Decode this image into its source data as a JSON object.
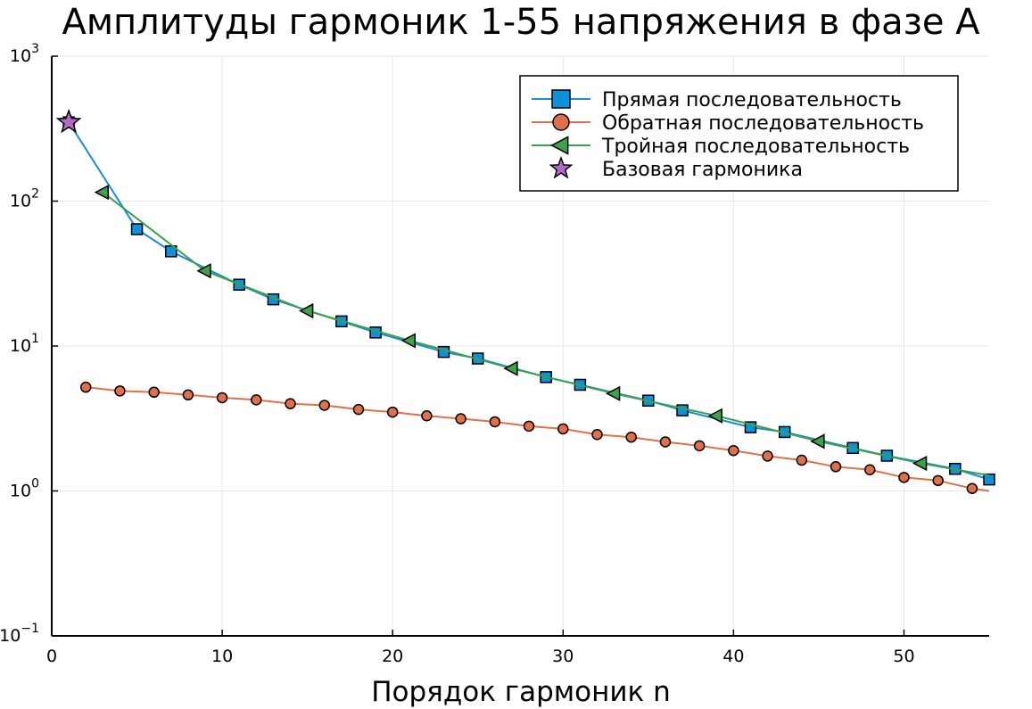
{
  "chart_data": {
    "type": "line",
    "title": "Амплитуды гармоник 1-55 напряжения в фазе A",
    "xlabel": "Порядок гармоник n",
    "ylabel": "",
    "xlim": [
      0,
      55
    ],
    "ylim": [
      0.1,
      1000
    ],
    "yscale": "log",
    "grid": true,
    "legend_position": "top-right",
    "x_ticks": [
      "0",
      "10",
      "20",
      "30",
      "40",
      "50"
    ],
    "y_ticks": [
      {
        "base": "10",
        "exp": "−1"
      },
      {
        "base": "10",
        "exp": "0"
      },
      {
        "base": "10",
        "exp": "1"
      },
      {
        "base": "10",
        "exp": "2"
      },
      {
        "base": "10",
        "exp": "3"
      }
    ],
    "series": [
      {
        "name": "Прямая последовательность",
        "marker": "square",
        "color": "#1E8ADB",
        "marker_color": "#0F90DB",
        "points": [
          [
            1,
            350
          ],
          [
            5,
            64
          ],
          [
            7,
            45
          ],
          [
            11,
            26.5
          ],
          [
            13,
            21
          ],
          [
            17,
            14.8
          ],
          [
            19,
            12.4
          ],
          [
            23,
            9.1
          ],
          [
            25,
            8.2
          ],
          [
            29,
            6.1
          ],
          [
            31,
            5.4
          ],
          [
            35,
            4.2
          ],
          [
            37,
            3.6
          ],
          [
            41,
            2.75
          ],
          [
            43,
            2.55
          ],
          [
            47,
            1.98
          ],
          [
            49,
            1.75
          ],
          [
            53,
            1.42
          ],
          [
            55,
            1.2
          ]
        ]
      },
      {
        "name": "Обратная последовательность",
        "marker": "circle",
        "color": "#E0704D",
        "marker_color": "#E0704D",
        "points": [
          [
            2,
            5.2
          ],
          [
            4,
            4.9
          ],
          [
            6,
            4.8
          ],
          [
            8,
            4.6
          ],
          [
            10,
            4.4
          ],
          [
            12,
            4.25
          ],
          [
            14,
            4.0
          ],
          [
            16,
            3.9
          ],
          [
            18,
            3.65
          ],
          [
            20,
            3.5
          ],
          [
            22,
            3.3
          ],
          [
            24,
            3.15
          ],
          [
            26,
            3.0
          ],
          [
            28,
            2.8
          ],
          [
            30,
            2.68
          ],
          [
            32,
            2.45
          ],
          [
            34,
            2.35
          ],
          [
            36,
            2.18
          ],
          [
            38,
            2.05
          ],
          [
            40,
            1.9
          ],
          [
            42,
            1.74
          ],
          [
            44,
            1.63
          ],
          [
            46,
            1.47
          ],
          [
            48,
            1.4
          ],
          [
            50,
            1.24
          ],
          [
            52,
            1.18
          ],
          [
            54,
            1.04
          ],
          [
            55,
            1.0
          ]
        ]
      },
      {
        "name": "Тройная последовательность",
        "marker": "triangle-left",
        "color": "#3AA14A",
        "marker_color": "#3FA04D",
        "points": [
          [
            3,
            115
          ],
          [
            9,
            33
          ],
          [
            15,
            17.5
          ],
          [
            21,
            10.9
          ],
          [
            27,
            7.0
          ],
          [
            33,
            4.7
          ],
          [
            39,
            3.3
          ],
          [
            45,
            2.2
          ],
          [
            51,
            1.55
          ],
          [
            55,
            1.28
          ]
        ]
      },
      {
        "name": "Базовая гармоника",
        "marker": "star",
        "color": "#B36AC7",
        "marker_color": "#B36AC7",
        "line": false,
        "points": [
          [
            1,
            350
          ]
        ]
      }
    ]
  }
}
